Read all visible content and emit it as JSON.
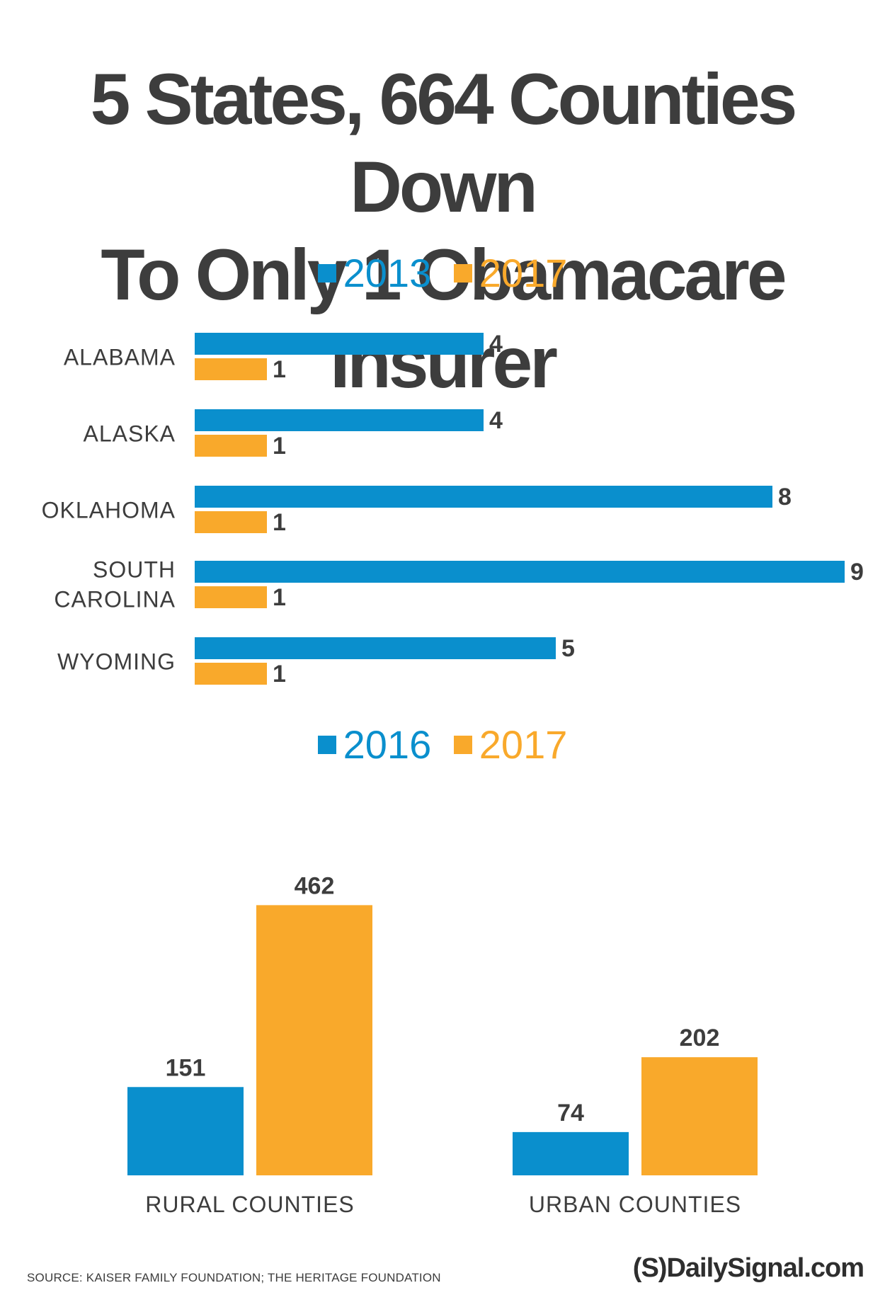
{
  "title_line1": "5 States, 664 Counties Down",
  "title_line2": "To Only 1 Obamacare Insurer",
  "colors": {
    "blue": "#0a8fcd",
    "orange": "#f9a92b",
    "label": "#3d3d3d"
  },
  "chart_data": [
    {
      "type": "bar",
      "orientation": "horizontal",
      "categories": [
        "ALABAMA",
        "ALASKA",
        "OKLAHOMA",
        "SOUTH CAROLINA",
        "WYOMING"
      ],
      "category_lines": [
        [
          "ALABAMA"
        ],
        [
          "ALASKA"
        ],
        [
          "OKLAHOMA"
        ],
        [
          "SOUTH",
          "CAROLINA"
        ],
        [
          "WYOMING"
        ]
      ],
      "series": [
        {
          "name": "2013",
          "values": [
            4,
            4,
            8,
            9,
            5
          ],
          "color": "#0a8fcd"
        },
        {
          "name": "2017",
          "values": [
            1,
            1,
            1,
            1,
            1
          ],
          "color": "#f9a92b"
        }
      ],
      "legend": [
        "2013",
        "2017"
      ]
    },
    {
      "type": "bar",
      "orientation": "vertical",
      "categories": [
        "RURAL COUNTIES",
        "URBAN COUNTIES"
      ],
      "series": [
        {
          "name": "2016",
          "values": [
            151,
            74
          ],
          "color": "#0a8fcd"
        },
        {
          "name": "2017",
          "values": [
            462,
            202
          ],
          "color": "#f9a92b"
        }
      ],
      "legend": [
        "2016",
        "2017"
      ]
    }
  ],
  "source": "SOURCE: KAISER FAMILY FOUNDATION; THE HERITAGE FOUNDATION",
  "logo_text": "(S)DailySignal.com"
}
